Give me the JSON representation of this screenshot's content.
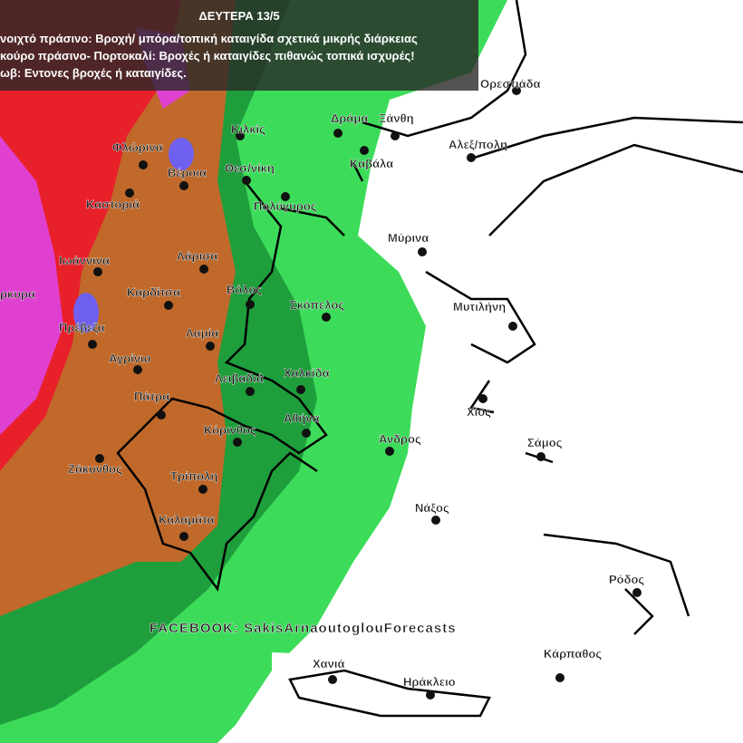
{
  "header": {
    "title": "ΔΕΥΤΕΡΑ 13/5",
    "legend": [
      "νοιχτό πράσινο: Βροχή/ μπόρα/τοπική καταιγίδα σχετικά μικρής διάρκειας",
      "κούρο πράσινο- Πορτοκαλί: Βροχές ή καταιγίδες πιθανώς τοπικά ισχυρές!",
      "ωβ: Εντονες βροχές ή καταιγίδες."
    ]
  },
  "cities": [
    "Ορεστιάδα",
    "Δράμα",
    "Ξάνθη",
    "Κιλκίς",
    "Φλώρινα",
    "Βέροια",
    "Θεσ/νίκη",
    "Καβάλα",
    "Αλεξ/πολη",
    "Καστοριά",
    "Πολύγυρος",
    "Μύρινα",
    "Ιωάννινα",
    "Λάρισα",
    "ρκυρα",
    "Καρδίτσα",
    "Βόλος",
    "Σκόπελος",
    "Μυτιλήνη",
    "Πρέβεζα",
    "Λαμία",
    "Αγρίνιο",
    "Λειβαδιά",
    "Χαλκίδα",
    "Χίος",
    "Πάτρα",
    "Αθήνα",
    "Κόρινθος",
    "Άνδρος",
    "Σάμος",
    "Ζάκυνθος",
    "Τρίπολη",
    "Νάξος",
    "Καλαμάτα",
    "Ρόδος",
    "Κάρπαθος",
    "Χανιά",
    "Ηράκλειο"
  ],
  "credit": "FACEBOOK: SakisArnaoutoglouForecasts"
}
